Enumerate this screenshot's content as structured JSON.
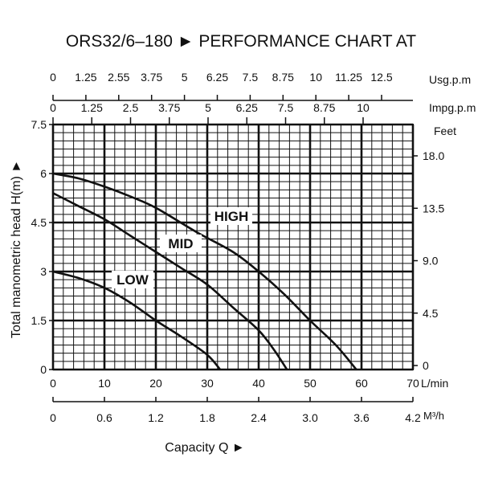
{
  "chart_data": {
    "type": "line",
    "title": "ORS32/6–180 ► PERFORMANCE CHART AT",
    "xlabel": "Capacity Q ►",
    "ylabel": "Total manometric head H(m) ►",
    "xlim": [
      0,
      70
    ],
    "ylim": [
      0,
      7.5
    ],
    "grid": true,
    "x_unit": "L/min",
    "x_ticks": [
      "0",
      "10",
      "20",
      "30",
      "40",
      "50",
      "60",
      "70"
    ],
    "y_ticks": [
      "0",
      "1.5",
      "3",
      "4.5",
      "6",
      "7.5"
    ],
    "secondary_axes": {
      "usgpm": {
        "label": "Usg.p.m",
        "ticks": [
          "0",
          "1.25",
          "2.55",
          "3.75",
          "5",
          "6.25",
          "7.5",
          "8.75",
          "10",
          "11.25",
          "12.5"
        ]
      },
      "impgpm": {
        "label": "Impg.p.m",
        "ticks": [
          "0",
          "1.25",
          "2.5",
          "3.75",
          "5",
          "6.25",
          "7.5",
          "8.75",
          "10"
        ]
      },
      "m3h": {
        "label": "M³/h",
        "ticks": [
          "0",
          "0.6",
          "1.2",
          "1.8",
          "2.4",
          "3.0",
          "3.6",
          "4.2"
        ]
      },
      "feet": {
        "label": "Feet",
        "ticks": [
          "0",
          "4.5",
          "9.0",
          "13.5",
          "18.0"
        ]
      }
    },
    "series": [
      {
        "name": "HIGH",
        "x": [
          0,
          5,
          10,
          15,
          20,
          28,
          35,
          40,
          45,
          50,
          55,
          59
        ],
        "y": [
          6,
          5.85,
          5.6,
          5.3,
          4.95,
          4.2,
          3.6,
          3.0,
          2.3,
          1.5,
          0.75,
          0
        ]
      },
      {
        "name": "MID",
        "x": [
          0,
          5,
          10,
          15,
          20,
          25,
          30,
          35,
          40,
          43,
          45.5
        ],
        "y": [
          5.4,
          5.0,
          4.6,
          4.1,
          3.6,
          3.1,
          2.6,
          1.9,
          1.2,
          0.6,
          0
        ]
      },
      {
        "name": "LOW",
        "x": [
          0,
          5,
          10,
          15,
          20,
          25,
          30,
          32.5
        ],
        "y": [
          3,
          2.8,
          2.5,
          2.05,
          1.5,
          1.0,
          0.45,
          0
        ]
      }
    ]
  }
}
